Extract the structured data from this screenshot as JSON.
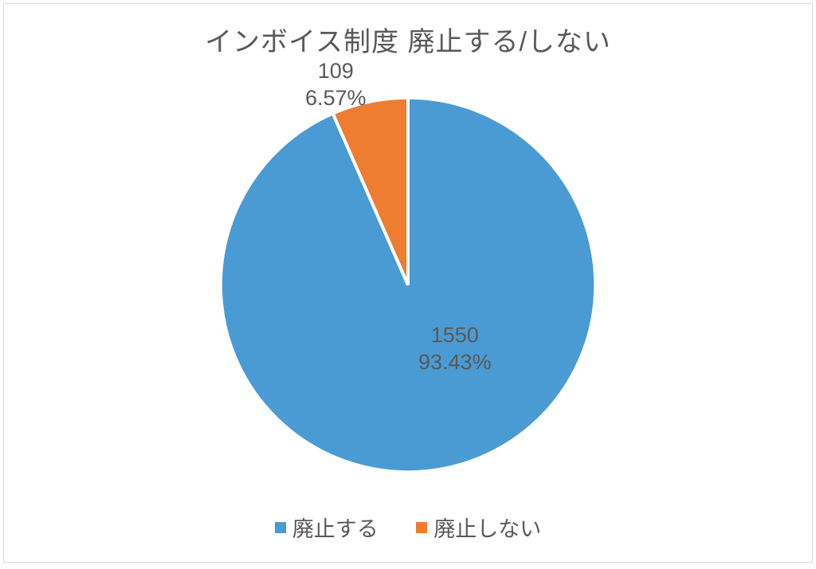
{
  "chart": {
    "type": "pie",
    "title": "インボイス制度 廃止する/しない",
    "title_fontsize": 34,
    "title_color": "#595959",
    "background_color": "#ffffff",
    "border_color": "#d9d9d9",
    "slice_separator_width": 4,
    "slice_separator_color": "#ffffff",
    "series": [
      {
        "name": "廃止する",
        "value": 1550,
        "percent": "93.43%",
        "color": "#4a9bd4",
        "label_count": "1550",
        "label_percent": "93.43%"
      },
      {
        "name": "廃止しない",
        "value": 109,
        "percent": "6.57%",
        "color": "#ee7d32",
        "label_count": "109",
        "label_percent": "6.57%"
      }
    ],
    "label_fontsize": 27,
    "label_color": "#595959",
    "legend_fontsize": 27,
    "legend_color": "#595959",
    "legend_position": "bottom"
  }
}
